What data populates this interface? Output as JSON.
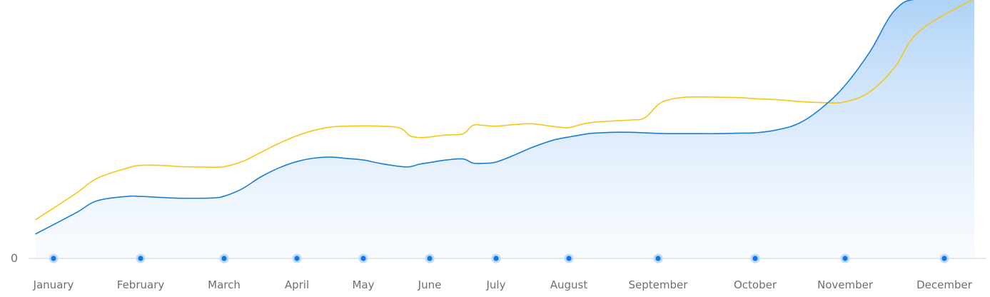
{
  "chart_data": {
    "type": "area",
    "categories": [
      "January",
      "February",
      "March",
      "April",
      "May",
      "June",
      "July",
      "August",
      "September",
      "October",
      "November",
      "December"
    ],
    "y_tick_labels": [
      "0"
    ],
    "ylim": [
      0,
      100
    ],
    "grid": false,
    "legend": "none",
    "series": [
      {
        "color": "#f5c518",
        "fill": false,
        "x": [
          0,
          0.25,
          0.5,
          0.85,
          1,
          1.25,
          1.5,
          1.85,
          2,
          2.25,
          2.5,
          2.75,
          3,
          3.25,
          3.5,
          3.75,
          4,
          4.25,
          4.55,
          4.7,
          4.85,
          5,
          5.25,
          5.5,
          5.65,
          5.8,
          6,
          6.25,
          6.5,
          6.75,
          6.9,
          7,
          7.1,
          7.25,
          7.5,
          7.7,
          7.85,
          8,
          8.1,
          8.25,
          8.4,
          8.6,
          8.85,
          9,
          9.25,
          9.5,
          9.75,
          10,
          10.25,
          10.5,
          10.75,
          11
        ],
        "values": [
          15,
          25,
          31,
          35,
          36,
          36,
          35.5,
          35.3,
          35.5,
          37.5,
          41,
          44.5,
          47.5,
          49.5,
          50.8,
          51.2,
          51.3,
          51.2,
          50.5,
          47.5,
          46.8,
          47,
          47.8,
          48.2,
          51.5,
          51.5,
          51.2,
          51.8,
          52.1,
          51.2,
          50.7,
          50.6,
          51.5,
          52.6,
          53.2,
          53.6,
          54.4,
          59.5,
          61.3,
          62.3,
          62.5,
          62.4,
          62.2,
          61.8,
          61.4,
          60.7,
          60.3,
          60.6,
          64.5,
          74,
          88,
          101
        ]
      },
      {
        "color": "#1a7fd4",
        "fill": true,
        "x": [
          0,
          0.25,
          0.5,
          0.85,
          1,
          1.25,
          1.5,
          1.85,
          2,
          2.25,
          2.5,
          2.75,
          3,
          3.25,
          3.5,
          3.75,
          4,
          4.25,
          4.55,
          4.7,
          4.85,
          5,
          5.25,
          5.5,
          5.65,
          5.8,
          6,
          6.25,
          6.5,
          6.75,
          6.9,
          7,
          7.1,
          7.25,
          7.5,
          7.7,
          7.85,
          8,
          8.1,
          8.25,
          8.4,
          8.6,
          8.85,
          9,
          9.25,
          9.5,
          9.75,
          10,
          10.25,
          10.5,
          10.75,
          11
        ],
        "values": [
          9.5,
          17.5,
          22.3,
          24,
          24,
          23.6,
          23.3,
          23.4,
          24.1,
          27,
          31.5,
          35,
          37.5,
          38.8,
          39.2,
          38.7,
          38.1,
          36.8,
          35.6,
          35.5,
          36.5,
          37.1,
          38.1,
          38.5,
          36.9,
          36.8,
          37.3,
          40,
          43,
          45.5,
          46.5,
          47,
          47.6,
          48.4,
          48.8,
          48.8,
          48.6,
          48.4,
          48.3,
          48.3,
          48.3,
          48.3,
          48.5,
          48.6,
          49.8,
          52.5,
          58.5,
          67,
          80,
          96,
          101,
          101
        ]
      }
    ]
  }
}
